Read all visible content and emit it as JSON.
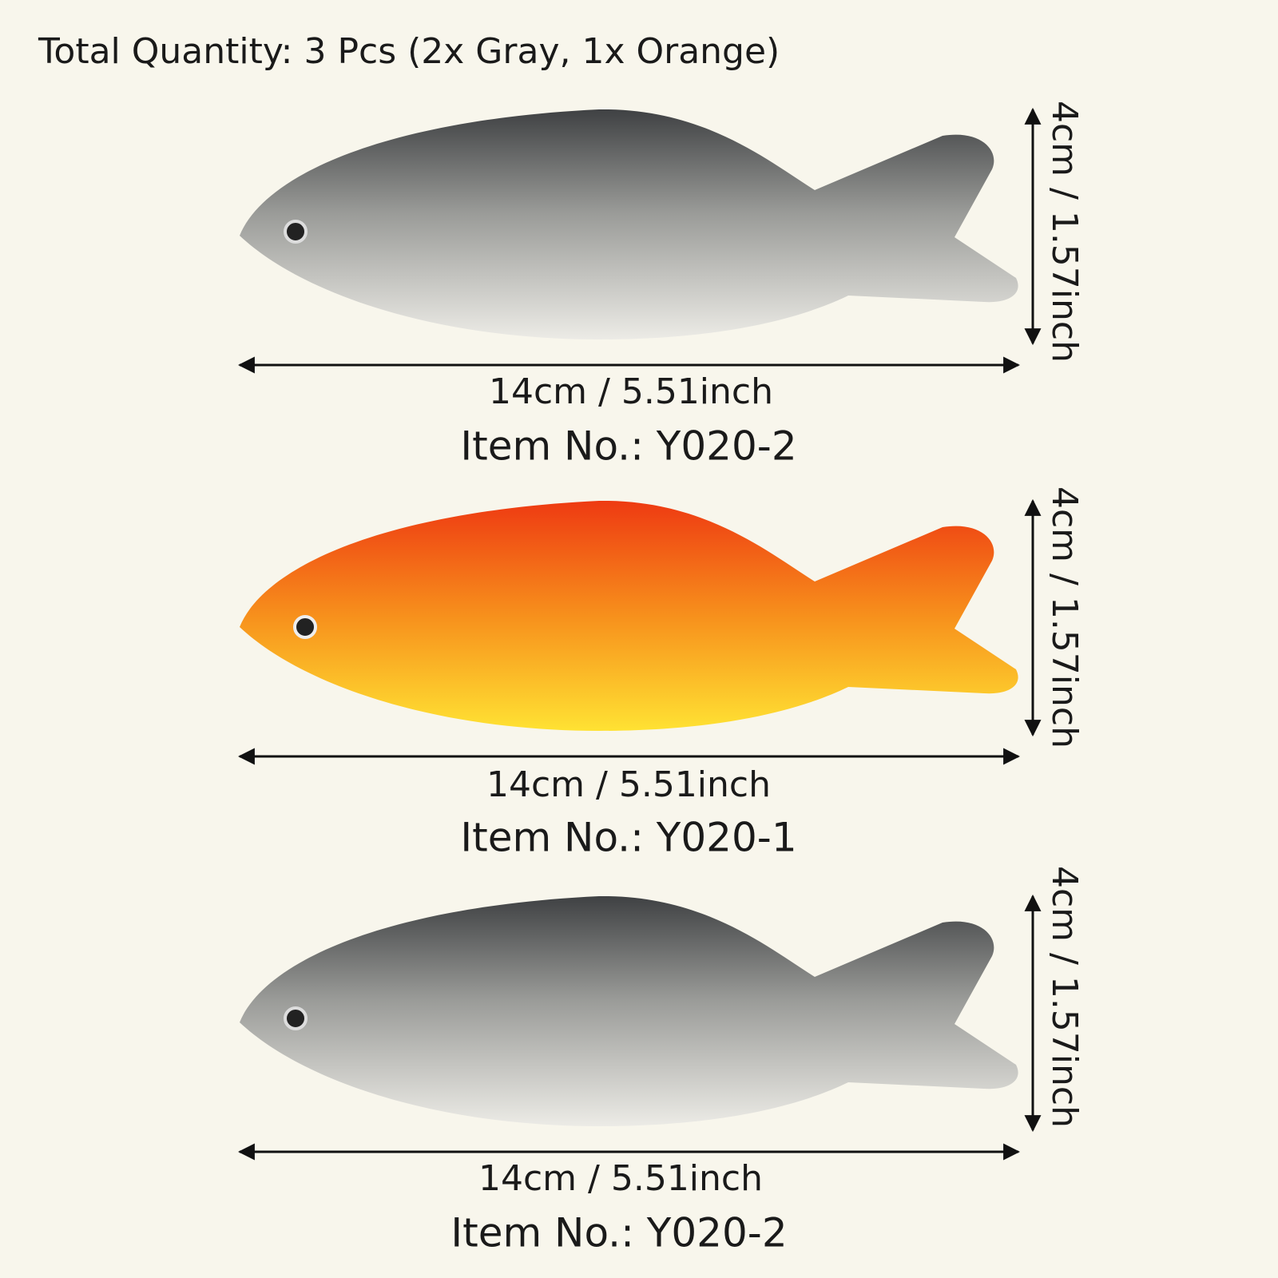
{
  "header": {
    "title": "Total Quantity: 3 Pcs (2x Gray, 1x Orange)"
  },
  "items": [
    {
      "height_label": "4cm / 1.57inch",
      "width_label": "14cm / 5.51inch",
      "item_no": "Item No.: Y020-2"
    },
    {
      "height_label": "4cm / 1.57inch",
      "width_label": "14cm / 5.51inch",
      "item_no": "Item No.: Y020-1"
    },
    {
      "height_label": "4cm / 1.57inch",
      "width_label": "14cm / 5.51inch",
      "item_no": "Item No.: Y020-2"
    }
  ]
}
